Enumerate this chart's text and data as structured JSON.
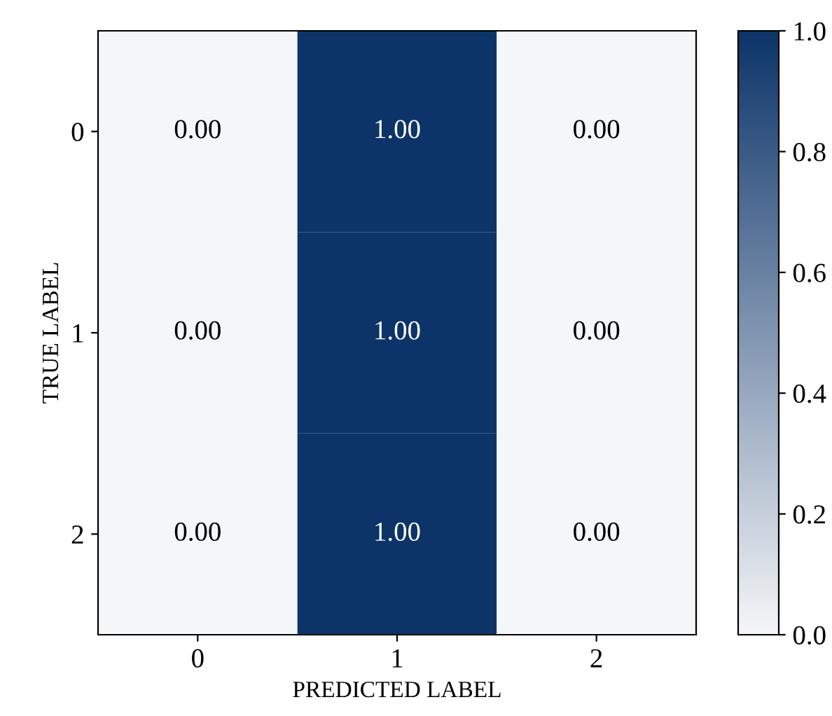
{
  "chart_data": {
    "type": "heatmap",
    "xlabel": "PREDICTED LABEL",
    "ylabel": "TRUE LABEL",
    "categories": [
      "0",
      "1",
      "2"
    ],
    "y_categories": [
      "0",
      "1",
      "2"
    ],
    "cells": [
      [
        0,
        1,
        0
      ],
      [
        0,
        1,
        0
      ],
      [
        0,
        1,
        0
      ]
    ],
    "cell_labels": [
      [
        "0.00",
        "1.00",
        "0.00"
      ],
      [
        "0.00",
        "1.00",
        "0.00"
      ],
      [
        "0.00",
        "1.00",
        "0.00"
      ]
    ],
    "clim": [
      0,
      1
    ],
    "cticks": [
      {
        "value": 0,
        "label": "0.0"
      },
      0.2,
      0.4,
      0.6,
      0.8,
      {
        "value": 1,
        "label": "1.0"
      }
    ]
  }
}
